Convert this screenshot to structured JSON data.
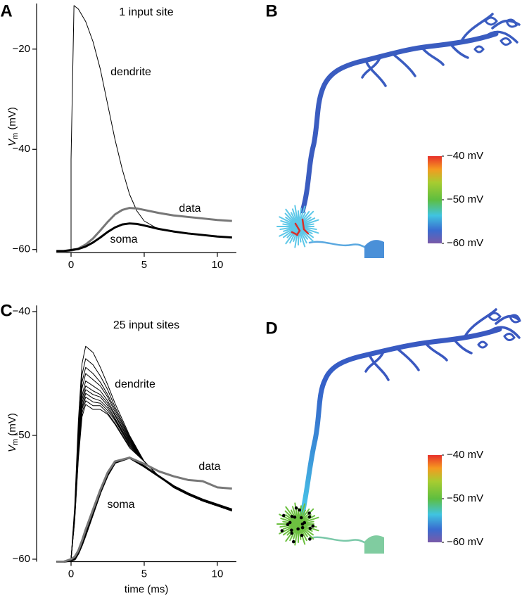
{
  "chart_data": [
    {
      "type": "line",
      "panel": "A",
      "ylabel": {
        "text": "V",
        "sub": "m",
        "unit": "(mV)"
      },
      "xlim": [
        -1,
        11.3
      ],
      "ylim": [
        -60.6,
        -10.9
      ],
      "xticks": [
        0,
        5,
        10
      ],
      "yticks": [
        {
          "value": -60,
          "label": "−60"
        },
        {
          "value": -40,
          "label": "−40"
        },
        {
          "value": -20,
          "label": "−20"
        }
      ],
      "annotations": [
        "1 input site",
        "dendrite",
        "data",
        "soma"
      ],
      "x": [
        -1,
        -0.5,
        0,
        0,
        0.2,
        0.5,
        1,
        1.5,
        2,
        2.5,
        3,
        3.5,
        4,
        4.5,
        5,
        6,
        7,
        8,
        9,
        10,
        11
      ],
      "series": [
        {
          "color": "#000000",
          "linewidth": 1,
          "values": [
            -60.3,
            -60.3,
            -60,
            -42,
            -11.3,
            -12,
            -14.5,
            -18.5,
            -24,
            -31,
            -38,
            -44,
            -49,
            -52.3,
            -54.3,
            -56,
            -56.5,
            -56.9,
            -57.2,
            -57.5,
            -57.7
          ]
        },
        {
          "color": "#777777",
          "linewidth": 3,
          "values": [
            -60.4,
            -60.4,
            -60.2,
            -60.2,
            -60.1,
            -59.8,
            -59,
            -57.8,
            -56.2,
            -54.5,
            -53,
            -52.1,
            -51.7,
            -51.8,
            -52.1,
            -52.7,
            -53.2,
            -53.5,
            -53.8,
            -54.1,
            -54.3
          ]
        },
        {
          "color": "#000000",
          "linewidth": 3,
          "values": [
            -60.3,
            -60.3,
            -60.1,
            -60.1,
            -60,
            -59.9,
            -59.4,
            -58.6,
            -57.6,
            -56.5,
            -55.6,
            -55,
            -54.8,
            -54.9,
            -55.2,
            -55.9,
            -56.4,
            -56.8,
            -57.1,
            -57.4,
            -57.6
          ]
        }
      ]
    },
    {
      "type": "colorbar",
      "panel": "B",
      "clim": [
        -60,
        -40
      ],
      "ticks": [
        {
          "value": -40,
          "label": "−40 mV"
        },
        {
          "value": -50,
          "label": "−50 mV"
        },
        {
          "value": -60,
          "label": "−60 mV"
        }
      ]
    },
    {
      "type": "line",
      "panel": "C",
      "ylabel": {
        "text": "V",
        "sub": "m",
        "unit": "(mV)"
      },
      "xlabel": "time (ms)",
      "xlim": [
        -1,
        11.3
      ],
      "ylim": [
        -60.2,
        -39.5
      ],
      "xticks": [
        0,
        5,
        10
      ],
      "yticks": [
        {
          "value": -60,
          "label": "−60"
        },
        {
          "value": -50,
          "label": "−50"
        },
        {
          "value": -40,
          "label": "−40"
        }
      ],
      "annotations": [
        "25 input sites",
        "dendrite",
        "data",
        "soma"
      ],
      "x": [
        -1,
        -0.5,
        0,
        0.25,
        0.5,
        0.75,
        1,
        1.5,
        2,
        2.5,
        3,
        4,
        5,
        6,
        7,
        8,
        9,
        10,
        11
      ],
      "series": [
        {
          "color": "#000000",
          "linewidth": 1,
          "values": [
            -60.2,
            -60.2,
            -60,
            -55.7,
            -48.8,
            -44.2,
            -42.8,
            -43.3,
            -44.5,
            -45.9,
            -47.4,
            -50.0,
            -52.1,
            -53.3,
            -54.2,
            -54.8,
            -55.3,
            -55.7,
            -56.1
          ]
        },
        {
          "color": "#000000",
          "linewidth": 1,
          "values": [
            -60.2,
            -60.2,
            -60,
            -56.0,
            -49.5,
            -45.1,
            -43.8,
            -44.3,
            -45.2,
            -46.3,
            -47.7,
            -50.1,
            -52.1,
            -53.3,
            -54.2,
            -54.8,
            -55.3,
            -55.7,
            -56.1
          ]
        },
        {
          "color": "#000000",
          "linewidth": 1,
          "values": [
            -60.2,
            -60.2,
            -60,
            -56.1,
            -49.9,
            -45.7,
            -44.5,
            -45.0,
            -45.7,
            -46.7,
            -47.9,
            -50.2,
            -52.1,
            -53.3,
            -54.2,
            -54.8,
            -55.3,
            -55.7,
            -56.1
          ]
        },
        {
          "color": "#000000",
          "linewidth": 1,
          "values": [
            -60.2,
            -60.2,
            -60,
            -56.3,
            -50.3,
            -46.2,
            -45.0,
            -45.5,
            -46.0,
            -46.9,
            -48.1,
            -50.3,
            -52.1,
            -53.3,
            -54.2,
            -54.8,
            -55.3,
            -55.7,
            -56.1
          ]
        },
        {
          "color": "#000000",
          "linewidth": 1,
          "values": [
            -60.2,
            -60.2,
            -60,
            -56.4,
            -50.6,
            -46.8,
            -45.6,
            -46.0,
            -46.4,
            -47.2,
            -48.3,
            -50.4,
            -52.1,
            -53.3,
            -54.2,
            -54.8,
            -55.3,
            -55.7,
            -56.1
          ]
        },
        {
          "color": "#000000",
          "linewidth": 1,
          "values": [
            -60.2,
            -60.2,
            -60,
            -56.5,
            -50.9,
            -47.1,
            -46.0,
            -46.4,
            -46.7,
            -47.4,
            -48.4,
            -50.5,
            -52.1,
            -53.3,
            -54.2,
            -54.8,
            -55.3,
            -55.7,
            -56.1
          ]
        },
        {
          "color": "#000000",
          "linewidth": 1,
          "values": [
            -60.2,
            -60.2,
            -60,
            -56.6,
            -51.1,
            -47.4,
            -46.3,
            -46.7,
            -46.9,
            -47.6,
            -48.6,
            -50.6,
            -52.1,
            -53.3,
            -54.2,
            -54.8,
            -55.3,
            -55.7,
            -56.1
          ]
        },
        {
          "color": "#000000",
          "linewidth": 1,
          "values": [
            -60.2,
            -60.2,
            -60,
            -56.7,
            -51.3,
            -47.7,
            -46.6,
            -47.0,
            -47.2,
            -47.8,
            -48.7,
            -50.7,
            -52.1,
            -53.3,
            -54.2,
            -54.8,
            -55.3,
            -55.7,
            -56.1
          ]
        },
        {
          "color": "#000000",
          "linewidth": 1,
          "values": [
            -60.2,
            -60.2,
            -60,
            -56.7,
            -51.5,
            -47.9,
            -46.9,
            -47.3,
            -47.4,
            -48.0,
            -48.8,
            -50.8,
            -52.1,
            -53.3,
            -54.2,
            -54.8,
            -55.3,
            -55.7,
            -56.1
          ]
        },
        {
          "color": "#000000",
          "linewidth": 1,
          "values": [
            -60.2,
            -60.2,
            -60,
            -56.8,
            -51.7,
            -48.2,
            -47.2,
            -47.6,
            -47.6,
            -48.2,
            -49.0,
            -50.9,
            -52.1,
            -53.3,
            -54.2,
            -54.8,
            -55.3,
            -55.7,
            -56.1
          ]
        },
        {
          "color": "#000000",
          "linewidth": 1,
          "values": [
            -60.2,
            -60.2,
            -60,
            -56.9,
            -51.9,
            -48.5,
            -47.5,
            -47.9,
            -47.9,
            -48.3,
            -49.1,
            -51.0,
            -52.1,
            -53.3,
            -54.2,
            -54.8,
            -55.3,
            -55.7,
            -56.1
          ]
        },
        {
          "color": "#000000",
          "linewidth": 3,
          "values": [
            -60.2,
            -60.2,
            -60.1,
            -60.0,
            -59.5,
            -58.8,
            -58.0,
            -56.3,
            -54.6,
            -53.2,
            -52.2,
            -51.8,
            -52.5,
            -53.3,
            -54.1,
            -54.7,
            -55.2,
            -55.6,
            -56.0
          ]
        },
        {
          "color": "#777777",
          "linewidth": 3,
          "values": [
            -60.2,
            -60.2,
            -60.0,
            -59.8,
            -59.3,
            -58.5,
            -57.6,
            -56.0,
            -54.4,
            -53.0,
            -52.1,
            -51.8,
            -52.3,
            -52.9,
            -53.3,
            -53.6,
            -53.7,
            -54.2,
            -54.3
          ]
        }
      ]
    },
    {
      "type": "colorbar",
      "panel": "D",
      "clim": [
        -60,
        -40
      ],
      "ticks": [
        {
          "value": -40,
          "label": "−40 mV"
        },
        {
          "value": -50,
          "label": "−50 mV"
        },
        {
          "value": -60,
          "label": "−60 mV"
        }
      ]
    }
  ]
}
